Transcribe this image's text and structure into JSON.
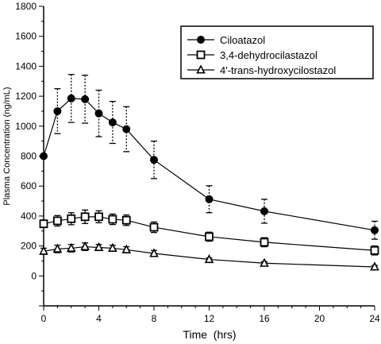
{
  "chart_data": {
    "type": "line",
    "xlabel": "Time  (hrs)",
    "ylabel": "Plasma Concentration (ng/mL)",
    "xlim": [
      0,
      24
    ],
    "ylim": [
      -200,
      1800
    ],
    "x_ticks": [
      0,
      4,
      8,
      12,
      16,
      20,
      24
    ],
    "y_ticks": [
      0,
      200,
      400,
      600,
      800,
      1000,
      1200,
      1400,
      1600,
      1800
    ],
    "grid": false,
    "legend_position": "top-right",
    "series": [
      {
        "name": "Ciloatazol",
        "marker": "filled-circle",
        "error_style": "dotted",
        "x": [
          0,
          1,
          2,
          3,
          4,
          5,
          6,
          8,
          12,
          16,
          24
        ],
        "y": [
          800,
          1100,
          1185,
          1180,
          1085,
          1025,
          980,
          775,
          512,
          432,
          305
        ],
        "err": [
          0,
          150,
          160,
          160,
          155,
          140,
          150,
          125,
          90,
          80,
          60
        ]
      },
      {
        "name": "3,4-dehydrocilastazol",
        "marker": "open-square",
        "error_style": "solid",
        "x": [
          0,
          1,
          2,
          3,
          4,
          5,
          6,
          8,
          12,
          16,
          24
        ],
        "y": [
          348,
          368,
          382,
          395,
          395,
          378,
          372,
          325,
          262,
          225,
          170
        ],
        "err": [
          25,
          35,
          40,
          45,
          40,
          35,
          35,
          35,
          30,
          30,
          30
        ]
      },
      {
        "name": "4'-trans-hydroxycilostazol",
        "marker": "open-triangle",
        "error_style": "solid",
        "x": [
          0,
          1,
          2,
          3,
          4,
          5,
          6,
          8,
          12,
          16,
          24
        ],
        "y": [
          165,
          180,
          185,
          195,
          190,
          185,
          175,
          150,
          110,
          85,
          60
        ],
        "err": [
          20,
          25,
          25,
          25,
          20,
          20,
          20,
          20,
          10,
          10,
          10
        ]
      }
    ]
  }
}
